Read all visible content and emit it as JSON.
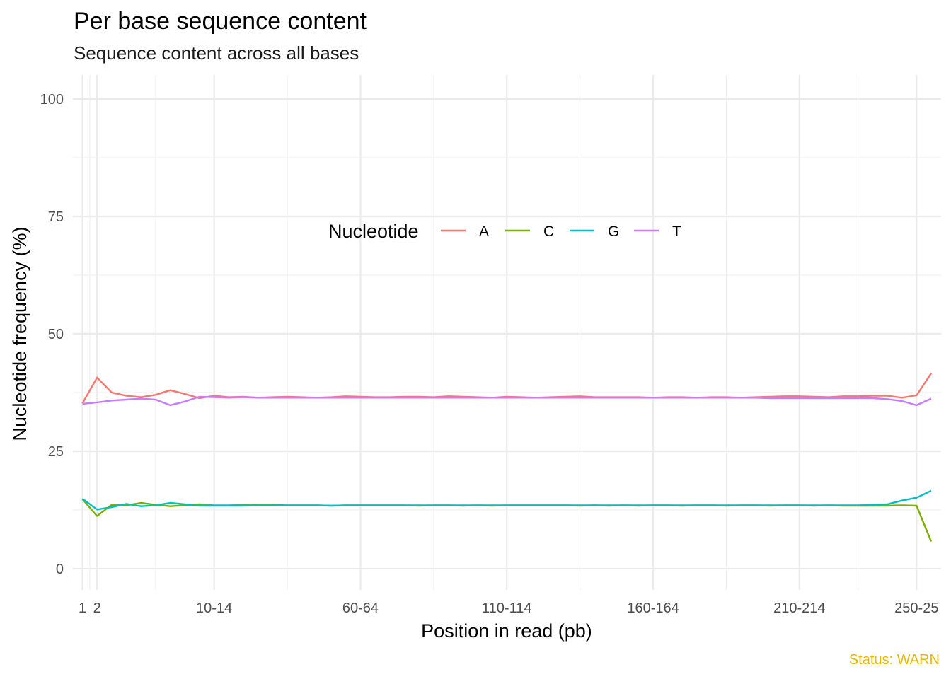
{
  "chart_data": {
    "type": "line",
    "title": "Per base sequence content",
    "subtitle": "Sequence content across all bases",
    "xlabel": "Position in read (pb)",
    "ylabel": "Nucleotide frequency (%)",
    "caption": "Status: WARN",
    "ylim": [
      0,
      100
    ],
    "y_ticks": [
      0,
      25,
      50,
      75,
      100
    ],
    "x_ticks": [
      "1",
      "2",
      "10-14",
      "60-64",
      "110-114",
      "160-164",
      "210-214",
      "250-25"
    ],
    "x_tick_index": [
      0,
      1,
      9,
      19,
      29,
      39,
      49,
      57
    ],
    "grid": true,
    "legend": {
      "title": "Nucleotide",
      "position": "inside-top-center"
    },
    "series": [
      {
        "name": "A",
        "color": "#F8766D",
        "values": [
          35.2,
          40.7,
          37.5,
          36.8,
          36.5,
          37.0,
          38.0,
          37.2,
          36.3,
          36.8,
          36.5,
          36.6,
          36.4,
          36.5,
          36.6,
          36.5,
          36.4,
          36.5,
          36.7,
          36.6,
          36.5,
          36.5,
          36.6,
          36.6,
          36.5,
          36.7,
          36.6,
          36.5,
          36.4,
          36.6,
          36.5,
          36.4,
          36.5,
          36.6,
          36.7,
          36.5,
          36.5,
          36.5,
          36.5,
          36.4,
          36.5,
          36.5,
          36.4,
          36.5,
          36.5,
          36.4,
          36.5,
          36.6,
          36.7,
          36.7,
          36.6,
          36.5,
          36.7,
          36.7,
          36.8,
          36.8,
          36.4,
          36.9,
          41.6
        ]
      },
      {
        "name": "C",
        "color": "#7CAE00",
        "values": [
          14.8,
          11.2,
          13.6,
          13.5,
          14.0,
          13.6,
          13.3,
          13.5,
          13.7,
          13.5,
          13.5,
          13.6,
          13.6,
          13.6,
          13.5,
          13.5,
          13.5,
          13.4,
          13.5,
          13.5,
          13.5,
          13.5,
          13.5,
          13.4,
          13.5,
          13.5,
          13.4,
          13.5,
          13.4,
          13.5,
          13.5,
          13.5,
          13.5,
          13.5,
          13.4,
          13.5,
          13.4,
          13.5,
          13.4,
          13.5,
          13.5,
          13.4,
          13.5,
          13.5,
          13.4,
          13.5,
          13.5,
          13.4,
          13.5,
          13.5,
          13.4,
          13.5,
          13.4,
          13.4,
          13.4,
          13.4,
          13.5,
          13.4,
          5.8
        ]
      },
      {
        "name": "G",
        "color": "#00BFC4",
        "values": [
          14.9,
          12.6,
          13.1,
          13.8,
          13.3,
          13.5,
          14.0,
          13.7,
          13.4,
          13.4,
          13.4,
          13.4,
          13.5,
          13.5,
          13.5,
          13.5,
          13.5,
          13.4,
          13.5,
          13.5,
          13.5,
          13.5,
          13.5,
          13.5,
          13.5,
          13.5,
          13.5,
          13.5,
          13.5,
          13.5,
          13.5,
          13.5,
          13.5,
          13.5,
          13.5,
          13.5,
          13.5,
          13.5,
          13.5,
          13.5,
          13.5,
          13.5,
          13.5,
          13.5,
          13.5,
          13.5,
          13.5,
          13.5,
          13.5,
          13.5,
          13.5,
          13.5,
          13.5,
          13.5,
          13.6,
          13.7,
          14.5,
          15.1,
          16.6
        ]
      },
      {
        "name": "T",
        "color": "#C77CFF",
        "values": [
          35.1,
          35.4,
          35.8,
          36.0,
          36.2,
          36.0,
          34.8,
          35.6,
          36.6,
          36.5,
          36.4,
          36.5,
          36.4,
          36.4,
          36.4,
          36.4,
          36.4,
          36.4,
          36.4,
          36.4,
          36.4,
          36.4,
          36.4,
          36.4,
          36.4,
          36.4,
          36.4,
          36.4,
          36.4,
          36.4,
          36.4,
          36.4,
          36.4,
          36.4,
          36.4,
          36.4,
          36.4,
          36.4,
          36.4,
          36.4,
          36.4,
          36.4,
          36.4,
          36.4,
          36.4,
          36.4,
          36.4,
          36.3,
          36.3,
          36.3,
          36.3,
          36.3,
          36.3,
          36.3,
          36.3,
          36.1,
          35.7,
          34.8,
          36.2
        ]
      }
    ]
  }
}
